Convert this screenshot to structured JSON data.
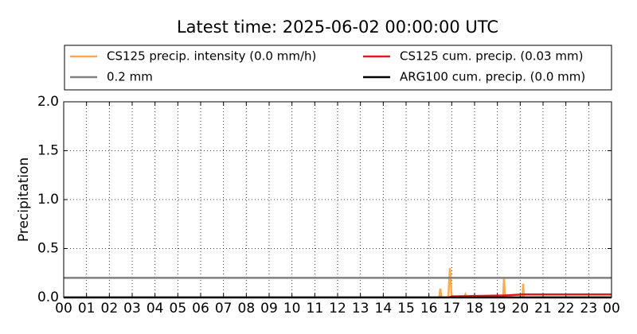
{
  "chart_data": {
    "type": "line",
    "title": "Latest time: 2025-06-02 00:00:00 UTC",
    "y_label": "Precipitation",
    "xlim": [
      0,
      24
    ],
    "xticks": [
      {
        "value": 0,
        "label": "00"
      },
      {
        "value": 1,
        "label": "01"
      },
      {
        "value": 2,
        "label": "02"
      },
      {
        "value": 3,
        "label": "03"
      },
      {
        "value": 4,
        "label": "04"
      },
      {
        "value": 5,
        "label": "05"
      },
      {
        "value": 6,
        "label": "06"
      },
      {
        "value": 7,
        "label": "07"
      },
      {
        "value": 8,
        "label": "08"
      },
      {
        "value": 9,
        "label": "09"
      },
      {
        "value": 10,
        "label": "10"
      },
      {
        "value": 11,
        "label": "11"
      },
      {
        "value": 12,
        "label": "12"
      },
      {
        "value": 13,
        "label": "13"
      },
      {
        "value": 14,
        "label": "14"
      },
      {
        "value": 15,
        "label": "15"
      },
      {
        "value": 16,
        "label": "16"
      },
      {
        "value": 17,
        "label": "17"
      },
      {
        "value": 18,
        "label": "18"
      },
      {
        "value": 19,
        "label": "19"
      },
      {
        "value": 20,
        "label": "20"
      },
      {
        "value": 21,
        "label": "21"
      },
      {
        "value": 22,
        "label": "22"
      },
      {
        "value": 23,
        "label": "23"
      },
      {
        "value": 24,
        "label": "00"
      }
    ],
    "ylim": [
      0,
      2
    ],
    "yticks": [
      {
        "value": 0,
        "label": "0.0"
      },
      {
        "value": 0.5,
        "label": "0.5"
      },
      {
        "value": 1,
        "label": "1.0"
      },
      {
        "value": 1.5,
        "label": "1.5"
      },
      {
        "value": 2,
        "label": "2.0"
      }
    ],
    "grid": true,
    "series": [
      {
        "name": "CS125 precip. intensity (0.0 mm/h)",
        "color": "#ffa94d",
        "x": [
          0,
          16.45,
          16.5,
          16.55,
          16.85,
          16.92,
          17.0,
          17.55,
          17.6,
          17.65,
          19.25,
          19.29,
          19.33,
          20.1,
          20.13,
          20.16,
          24
        ],
        "values": [
          0,
          0,
          0.09,
          0,
          0,
          0.3,
          0,
          0,
          0.03,
          0,
          0,
          0.2,
          0,
          0,
          0.14,
          0,
          0
        ]
      },
      {
        "name": "0.2 mm",
        "color": "#808080",
        "x": [
          0,
          24
        ],
        "values": [
          0.2,
          0.2
        ]
      },
      {
        "name": "CS125 cum. precip. (0.03 mm)",
        "color": "#e31a1c",
        "x": [
          16.9,
          17.0,
          19.3,
          20.1,
          24
        ],
        "values": [
          0,
          0.01,
          0.02,
          0.03,
          0.03
        ]
      },
      {
        "name": "ARG100 cum. precip. (0.0 mm)",
        "color": "#000000",
        "x": [
          0,
          24
        ],
        "values": [
          0,
          0
        ]
      }
    ]
  }
}
